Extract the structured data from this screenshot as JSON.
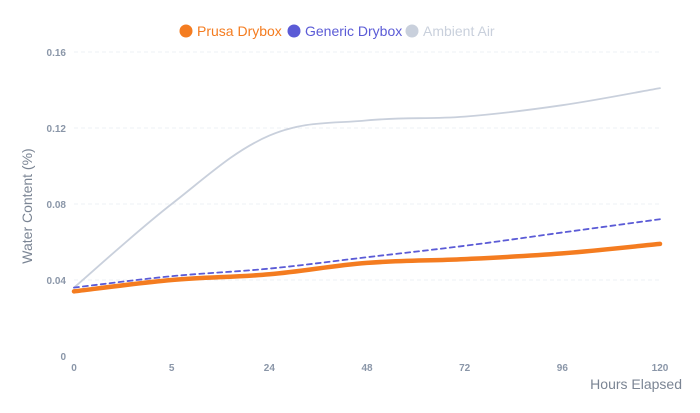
{
  "chart_data": {
    "type": "line",
    "xlabel": "Hours Elapsed",
    "ylabel": "Water Content (%)",
    "x_categories": [
      "0",
      "5",
      "24",
      "48",
      "72",
      "96",
      "120"
    ],
    "y_ticks": [
      "0",
      "0.04",
      "0.08",
      "0.12",
      "0.16"
    ],
    "ylim": [
      0,
      0.16
    ],
    "grid": true,
    "legend_position": "top",
    "series": [
      {
        "name": "Prusa Drybox",
        "color": "#f47c20",
        "style": "solid-thick",
        "values": [
          0.034,
          0.04,
          0.043,
          0.049,
          0.051,
          0.054,
          0.059
        ]
      },
      {
        "name": "Generic Drybox",
        "color": "#5b5bd6",
        "style": "dashed",
        "values": [
          0.036,
          0.042,
          0.046,
          0.052,
          0.058,
          0.065,
          0.072
        ]
      },
      {
        "name": "Ambient Air",
        "color": "#c9d0dc",
        "style": "solid",
        "values": [
          0.036,
          0.08,
          0.116,
          0.124,
          0.126,
          0.132,
          0.141
        ]
      }
    ]
  }
}
